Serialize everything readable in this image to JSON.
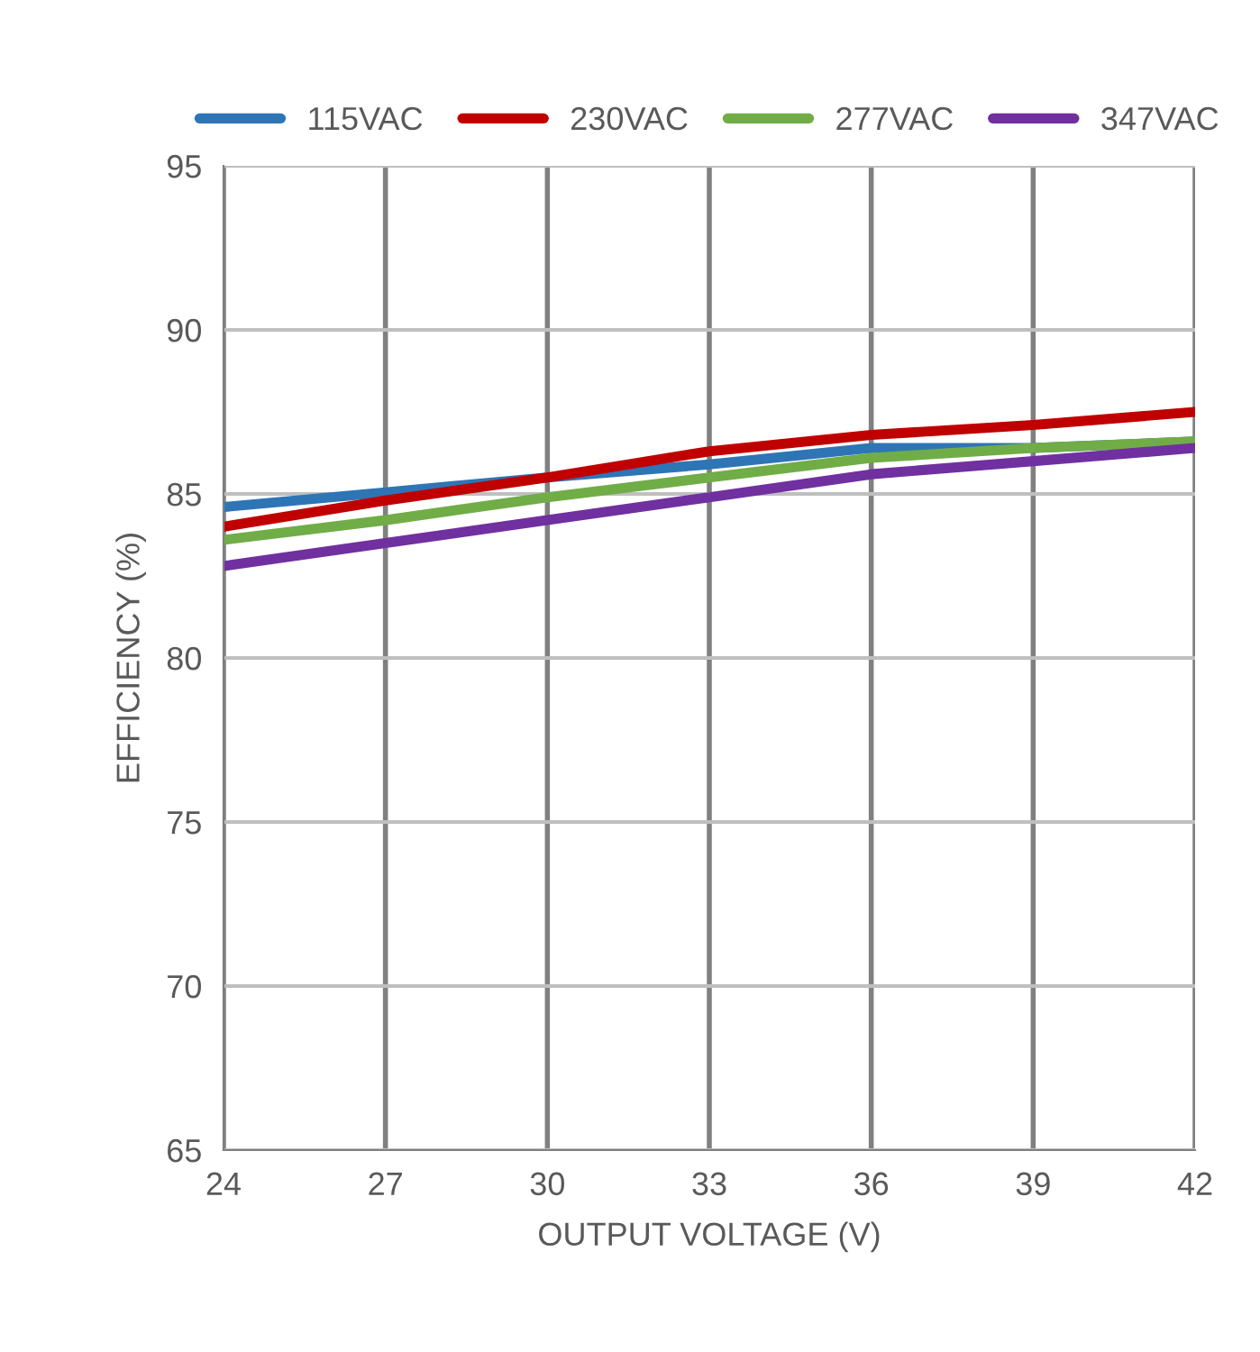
{
  "chart_data": {
    "type": "line",
    "xlabel": "OUTPUT VOLTAGE (V)",
    "ylabel": "EFFICIENCY (%)",
    "x": [
      24,
      27,
      30,
      33,
      36,
      39,
      42
    ],
    "series": [
      {
        "name": "115VAC",
        "color": "#2e75b6",
        "values": [
          84.6,
          85.05,
          85.5,
          85.9,
          86.4,
          86.4,
          86.6
        ]
      },
      {
        "name": "230VAC",
        "color": "#c00000",
        "values": [
          84.0,
          84.8,
          85.5,
          86.3,
          86.8,
          87.1,
          87.5
        ]
      },
      {
        "name": "277VAC",
        "color": "#70ad47",
        "values": [
          83.6,
          84.2,
          84.9,
          85.5,
          86.1,
          86.4,
          86.6
        ]
      },
      {
        "name": "347VAC",
        "color": "#7030a0",
        "values": [
          82.8,
          83.5,
          84.2,
          84.9,
          85.6,
          86.0,
          86.4
        ]
      }
    ],
    "xlim": [
      24,
      42
    ],
    "xticks": [
      24,
      27,
      30,
      33,
      36,
      39,
      42
    ],
    "ylim": [
      65,
      95
    ],
    "yticks": [
      65,
      70,
      75,
      80,
      85,
      90,
      95
    ],
    "grid": true,
    "legend": "top",
    "marker": "none",
    "line_style": "solid"
  }
}
